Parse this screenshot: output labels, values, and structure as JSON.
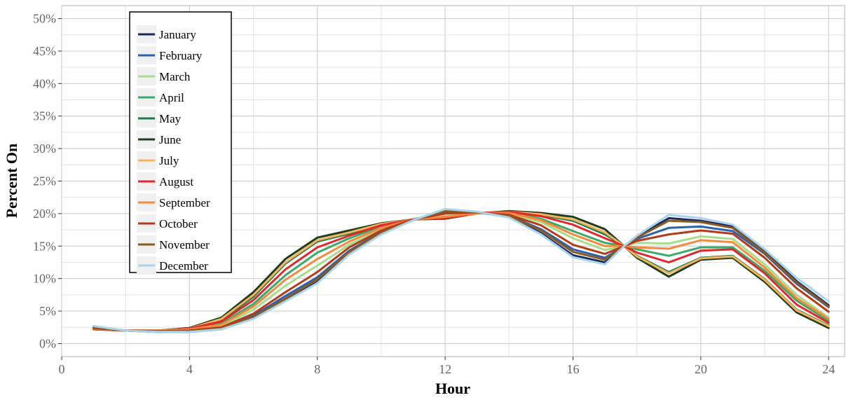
{
  "chart_data": {
    "type": "line",
    "xlabel": "Hour",
    "ylabel": "Percent On",
    "xlim": [
      0,
      24.5
    ],
    "ylim": [
      -2,
      52
    ],
    "x_ticks": [
      0,
      4,
      8,
      12,
      16,
      20,
      24
    ],
    "x_tick_labels": [
      "0",
      "4",
      "8",
      "12",
      "16",
      "20",
      "24"
    ],
    "y_ticks": [
      0,
      5,
      10,
      15,
      20,
      25,
      30,
      35,
      40,
      45,
      50
    ],
    "y_tick_labels": [
      "0%",
      "5%",
      "10%",
      "15%",
      "20%",
      "25%",
      "30%",
      "35%",
      "40%",
      "45%",
      "50%"
    ],
    "grid": true,
    "legend_position": "top-left",
    "x": [
      1,
      2,
      3,
      4,
      5,
      6,
      7,
      8,
      9,
      10,
      11,
      12,
      13,
      14,
      15,
      16,
      17,
      17.6,
      18,
      19,
      20,
      21,
      22,
      23,
      24
    ],
    "series": [
      {
        "name": "January",
        "color": "#1b2a5e",
        "values": [
          2.6,
          2.0,
          1.8,
          1.8,
          2.2,
          3.9,
          6.6,
          9.5,
          13.8,
          16.9,
          19.0,
          20.6,
          20.2,
          19.5,
          17.0,
          13.6,
          12.5,
          15.0,
          16.5,
          19.3,
          18.9,
          18.0,
          14.2,
          9.6,
          5.9
        ]
      },
      {
        "name": "February",
        "color": "#2a62b0",
        "values": [
          2.5,
          2.0,
          1.8,
          1.9,
          2.4,
          4.3,
          7.3,
          10.2,
          14.3,
          17.2,
          19.1,
          20.3,
          20.2,
          19.7,
          17.6,
          14.5,
          13.2,
          15.0,
          16.1,
          17.8,
          18.0,
          17.3,
          13.8,
          9.2,
          5.6
        ]
      },
      {
        "name": "March",
        "color": "#a8dc8a",
        "values": [
          2.4,
          2.0,
          1.9,
          2.1,
          2.7,
          5.2,
          8.9,
          12.0,
          15.2,
          17.6,
          19.1,
          19.6,
          20.1,
          20.0,
          18.7,
          16.2,
          14.4,
          15.0,
          15.5,
          15.4,
          16.5,
          16.1,
          12.2,
          7.5,
          4.0
        ]
      },
      {
        "name": "April",
        "color": "#3aaa6a",
        "values": [
          2.3,
          2.0,
          2.0,
          2.2,
          3.1,
          6.1,
          10.5,
          14.0,
          16.2,
          18.0,
          19.1,
          19.4,
          20.1,
          20.2,
          19.2,
          17.3,
          15.5,
          15.0,
          14.5,
          13.5,
          14.8,
          14.8,
          11.2,
          6.6,
          3.5
        ]
      },
      {
        "name": "May",
        "color": "#1e7c4a",
        "values": [
          2.2,
          2.0,
          2.0,
          2.3,
          3.6,
          7.2,
          12.3,
          15.7,
          16.9,
          18.3,
          19.1,
          19.3,
          20.0,
          20.3,
          19.8,
          18.9,
          16.8,
          15.0,
          13.5,
          11.0,
          13.2,
          13.5,
          9.9,
          5.2,
          2.8
        ]
      },
      {
        "name": "June",
        "color": "#1f3d1c",
        "values": [
          2.2,
          2.0,
          2.0,
          2.4,
          4.0,
          7.9,
          13.0,
          16.3,
          17.4,
          18.5,
          19.1,
          19.2,
          20.0,
          20.4,
          20.1,
          19.5,
          17.6,
          15.0,
          13.2,
          10.3,
          12.9,
          13.2,
          9.5,
          4.8,
          2.4
        ]
      },
      {
        "name": "July",
        "color": "#f7b35a",
        "values": [
          2.2,
          2.0,
          2.0,
          2.3,
          3.8,
          7.5,
          12.5,
          15.9,
          17.1,
          18.4,
          19.1,
          19.3,
          20.0,
          20.3,
          19.9,
          19.1,
          17.1,
          15.0,
          13.4,
          10.8,
          13.1,
          13.4,
          9.8,
          5.1,
          2.7
        ]
      },
      {
        "name": "August",
        "color": "#e3262a",
        "values": [
          2.2,
          2.0,
          2.0,
          2.3,
          3.4,
          6.7,
          11.4,
          14.8,
          16.6,
          18.2,
          19.1,
          19.3,
          20.1,
          20.3,
          19.6,
          18.3,
          16.2,
          15.0,
          14.0,
          12.5,
          14.3,
          14.5,
          10.8,
          6.0,
          3.2
        ]
      },
      {
        "name": "September",
        "color": "#f58a3c",
        "values": [
          2.3,
          2.0,
          2.0,
          2.2,
          2.9,
          5.7,
          9.8,
          13.0,
          15.7,
          17.8,
          19.1,
          19.5,
          20.1,
          20.1,
          19.0,
          16.8,
          15.0,
          15.0,
          14.8,
          14.6,
          15.9,
          15.6,
          11.7,
          7.0,
          3.8
        ]
      },
      {
        "name": "October",
        "color": "#b53a1a",
        "values": [
          2.4,
          2.0,
          1.9,
          2.0,
          2.5,
          4.6,
          7.9,
          11.0,
          14.8,
          17.4,
          19.1,
          20.0,
          20.2,
          19.8,
          18.2,
          15.2,
          13.8,
          15.0,
          15.8,
          16.8,
          17.4,
          16.9,
          13.2,
          8.5,
          4.9
        ]
      },
      {
        "name": "November",
        "color": "#8c5a1e",
        "values": [
          2.5,
          2.0,
          1.8,
          1.9,
          2.3,
          4.1,
          6.9,
          9.9,
          14.1,
          17.1,
          19.0,
          20.4,
          20.2,
          19.6,
          17.4,
          14.1,
          12.9,
          15.0,
          16.3,
          18.9,
          18.7,
          17.8,
          14.0,
          9.4,
          5.7
        ]
      },
      {
        "name": "December",
        "color": "#a9d5ec",
        "values": [
          2.7,
          2.0,
          1.8,
          1.8,
          2.2,
          3.8,
          6.5,
          9.3,
          13.7,
          16.8,
          19.0,
          20.7,
          20.3,
          19.4,
          16.8,
          13.3,
          12.2,
          15.0,
          16.6,
          19.8,
          19.3,
          18.3,
          14.5,
          10.1,
          6.5
        ]
      }
    ]
  }
}
